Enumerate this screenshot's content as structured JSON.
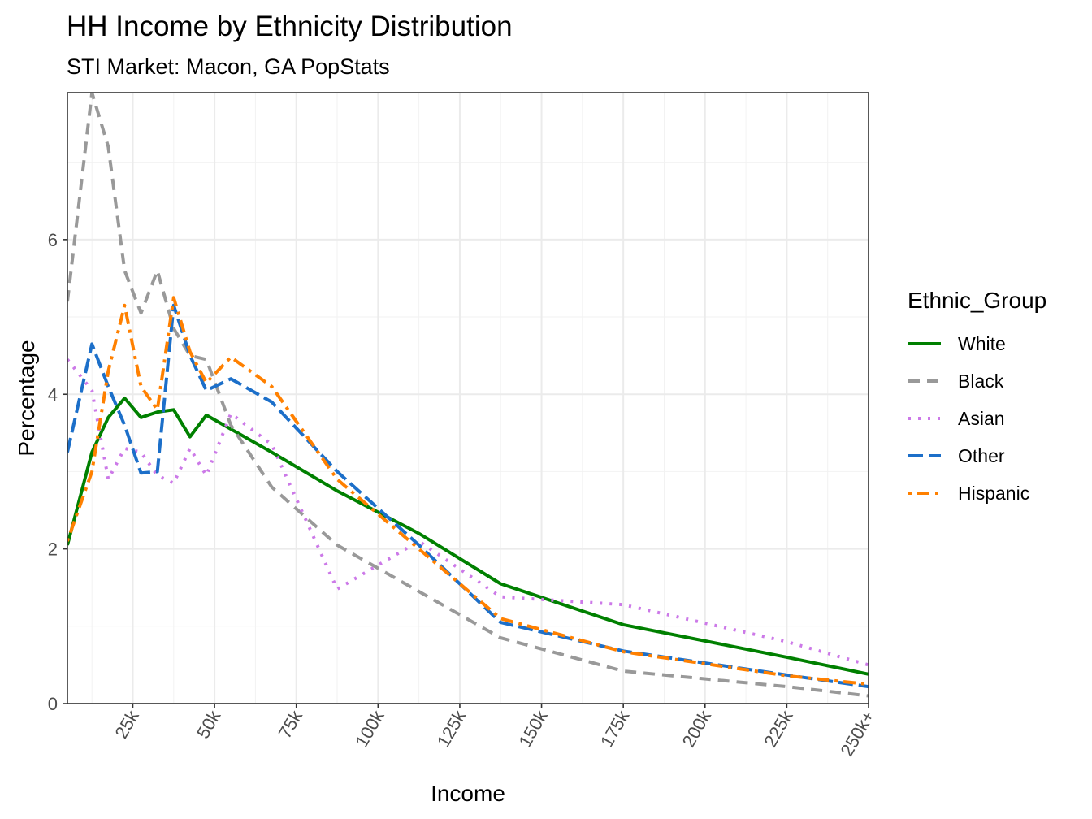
{
  "chart_data": {
    "type": "line",
    "title": "HH Income by Ethnicity Distribution",
    "subtitle": "STI Market: Macon, GA PopStats",
    "xlabel": "Income",
    "ylabel": "Percentage",
    "x_unit": "thousands of dollars",
    "xlim": [
      5,
      250
    ],
    "ylim": [
      0,
      7.9
    ],
    "x_ticks": [
      25,
      50,
      75,
      100,
      125,
      150,
      175,
      200,
      225,
      250
    ],
    "x_tick_labels": [
      "25k",
      "50k",
      "75k",
      "100k",
      "125k",
      "150k",
      "175k",
      "200k",
      "225k",
      "250k+"
    ],
    "y_ticks": [
      0,
      2,
      4,
      6
    ],
    "y_tick_labels": [
      "0",
      "2",
      "4",
      "6"
    ],
    "grid": true,
    "legend_title": "Ethnic_Group",
    "legend_position": "right",
    "x": [
      5,
      12.5,
      17.5,
      22.5,
      27.5,
      32.5,
      37.5,
      42.5,
      47.5,
      55,
      67.5,
      87.5,
      112.5,
      137.5,
      175,
      225,
      250
    ],
    "series": [
      {
        "name": "White",
        "color": "#008000",
        "dash": "solid",
        "values": [
          2.05,
          3.25,
          3.7,
          3.95,
          3.7,
          3.77,
          3.8,
          3.45,
          3.73,
          3.55,
          3.25,
          2.75,
          2.2,
          1.55,
          1.02,
          0.6,
          0.38
        ]
      },
      {
        "name": "Black",
        "color": "#999999",
        "dash": "dashed",
        "values": [
          5.2,
          7.9,
          7.2,
          5.6,
          5.05,
          5.6,
          4.85,
          4.5,
          4.45,
          3.6,
          2.8,
          2.05,
          1.45,
          0.85,
          0.42,
          0.22,
          0.1
        ]
      },
      {
        "name": "Asian",
        "color": "#CC79E8",
        "dash": "dotted",
        "values": [
          4.45,
          4.05,
          2.9,
          3.3,
          3.25,
          2.95,
          2.85,
          3.3,
          2.95,
          3.75,
          3.35,
          1.48,
          2.1,
          1.38,
          1.28,
          0.8,
          0.5
        ]
      },
      {
        "name": "Other",
        "color": "#1C6FC9",
        "dash": "longdash",
        "values": [
          3.25,
          4.65,
          4.1,
          3.6,
          2.98,
          3.0,
          5.15,
          4.5,
          4.05,
          4.2,
          3.9,
          3.0,
          2.05,
          1.05,
          0.68,
          0.37,
          0.22
        ]
      },
      {
        "name": "Hispanic",
        "color": "#FF8000",
        "dash": "dotdash",
        "values": [
          2.1,
          3.0,
          4.3,
          5.15,
          4.1,
          3.8,
          5.25,
          4.55,
          4.15,
          4.48,
          4.1,
          2.9,
          2.0,
          1.1,
          0.67,
          0.36,
          0.25
        ]
      }
    ]
  }
}
